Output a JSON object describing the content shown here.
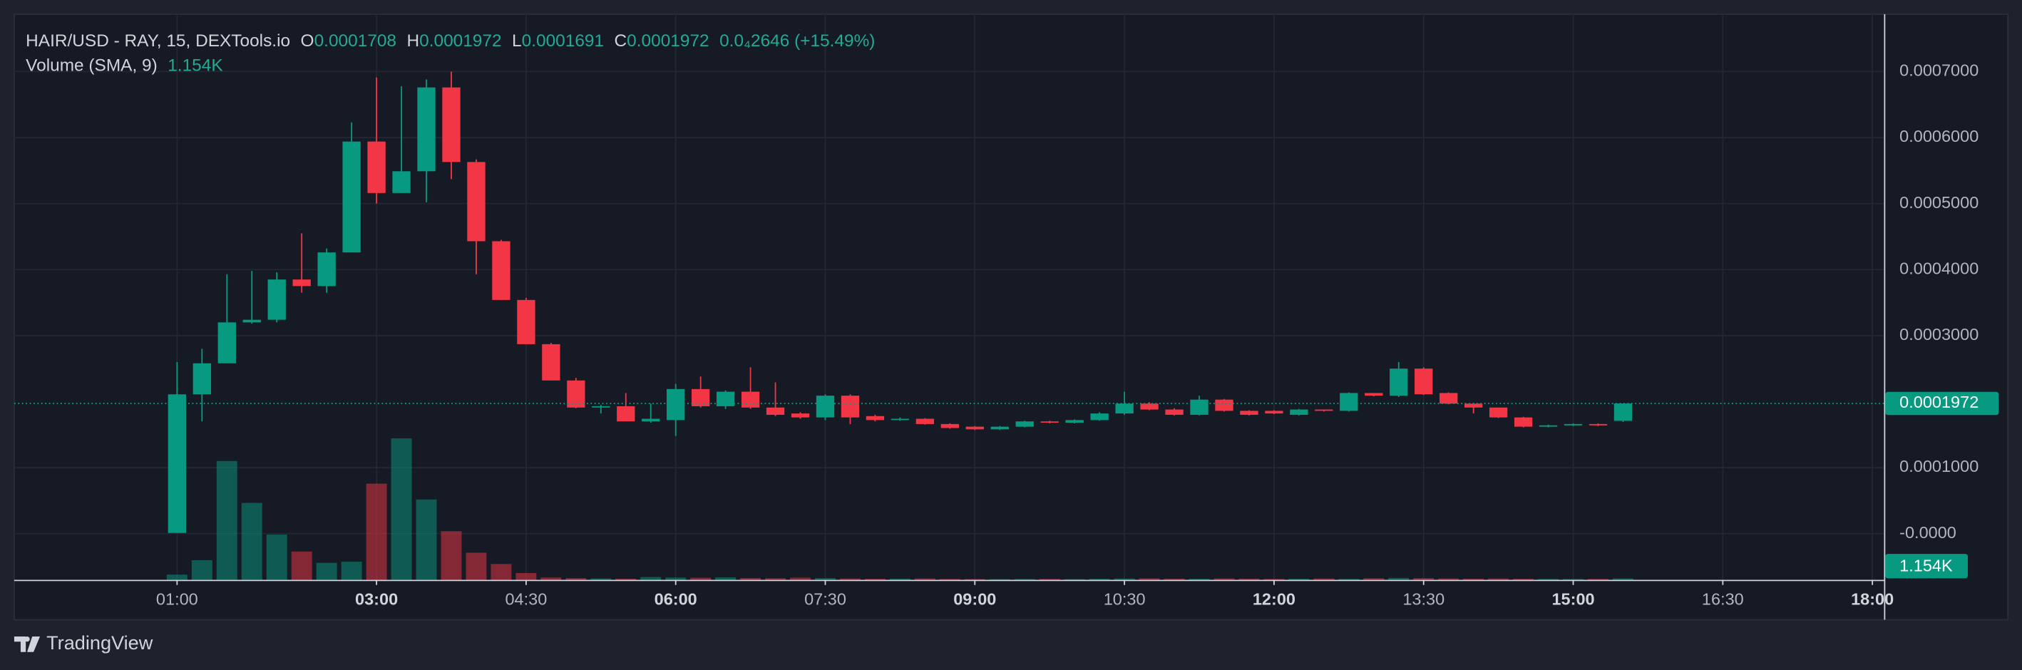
{
  "chart_data": {
    "type": "candlestick",
    "title": "HAIR/USD - RAY, 15, DEXTools.io",
    "ohlc_labels": [
      "O",
      "H",
      "L",
      "C"
    ],
    "change": "0.0₄2646 (+15.49%)",
    "volume_title": "Volume (SMA, 9)",
    "volume_sma": {
      "value": 1154,
      "label": "1.154K"
    },
    "branding": "TradingView",
    "up_color": "#089981",
    "down_color": "#f23645",
    "volume_up_color": "rgba(8,153,129,0.5)",
    "volume_down_color": "rgba(242,54,69,0.5)",
    "grid": true,
    "x": [
      60,
      75,
      90,
      105,
      120,
      135,
      150,
      165,
      180,
      195,
      210,
      225,
      240,
      255,
      270,
      285,
      300,
      315,
      330,
      345,
      360,
      375,
      390,
      405,
      420,
      435,
      450,
      465,
      480,
      495,
      510,
      525,
      540,
      555,
      570,
      585,
      600,
      615,
      630,
      645,
      660,
      675,
      690,
      705,
      720,
      735,
      750,
      765,
      780,
      795,
      810,
      825,
      840,
      855,
      870,
      885,
      900,
      915,
      930
    ],
    "open": [
      1e-06,
      0.000211,
      0.000258,
      0.00032,
      0.000324,
      0.000385,
      0.000375,
      0.000426,
      0.000594,
      0.000516,
      0.000549,
      0.000676,
      0.000563,
      0.000443,
      0.000354,
      0.000287,
      0.000232,
      0.000191,
      0.000193,
      0.00017,
      0.000172,
      0.000219,
      0.000193,
      0.000215,
      0.000191,
      0.000182,
      0.000176,
      0.000209,
      0.000178,
      0.000172,
      0.000174,
      0.000166,
      0.000162,
      0.000158,
      0.000162,
      0.00017,
      0.000168,
      0.000172,
      0.000182,
      0.000197,
      0.000188,
      0.00018,
      0.000203,
      0.000186,
      0.000186,
      0.00018,
      0.000188,
      0.000186,
      0.000213,
      0.000209,
      0.00025,
      0.000213,
      0.000197,
      0.000191,
      0.000176,
      0.000162,
      0.000164,
      0.000166,
      0.0001708
    ],
    "high": [
      0.00026,
      0.00028,
      0.000393,
      0.000398,
      0.000396,
      0.000455,
      0.000432,
      0.000623,
      0.000691,
      0.000678,
      0.000688,
      0.0007,
      0.000567,
      0.000445,
      0.000357,
      0.000289,
      0.000236,
      0.000195,
      0.000213,
      0.000197,
      0.000227,
      0.000238,
      0.000217,
      0.000252,
      0.000229,
      0.000184,
      0.000211,
      0.000211,
      0.00018,
      0.000176,
      0.000175,
      0.000167,
      0.000163,
      0.000163,
      0.000171,
      0.000171,
      0.000173,
      0.000184,
      0.000215,
      0.000199,
      0.00019,
      0.000209,
      0.000204,
      0.000187,
      0.000187,
      0.000189,
      0.000188,
      0.000214,
      0.000213,
      0.00026,
      0.000252,
      0.000214,
      0.000198,
      0.000191,
      0.000177,
      0.000165,
      0.000167,
      0.000167,
      0.0001972
    ],
    "low": [
      1e-06,
      0.00017,
      0.000258,
      0.000318,
      0.00032,
      0.000365,
      0.000365,
      0.000426,
      0.0005,
      0.000516,
      0.000502,
      0.000537,
      0.000393,
      0.000354,
      0.000287,
      0.000232,
      0.00019,
      0.000182,
      0.00017,
      0.000168,
      0.000148,
      0.000191,
      0.000189,
      0.000189,
      0.000178,
      0.000174,
      0.000172,
      0.000166,
      0.00017,
      0.000171,
      0.000165,
      0.000159,
      0.000157,
      0.000157,
      0.000161,
      0.000167,
      0.000167,
      0.000171,
      0.00018,
      0.000187,
      0.000179,
      0.000179,
      0.000185,
      0.000179,
      0.000181,
      0.000179,
      0.000185,
      0.000185,
      0.000208,
      0.000207,
      0.00021,
      0.000196,
      0.000182,
      0.000175,
      0.000161,
      0.000161,
      0.000163,
      0.000163,
      0.0001691
    ],
    "close": [
      0.000211,
      0.000258,
      0.00032,
      0.000324,
      0.000385,
      0.000375,
      0.000426,
      0.000594,
      0.000516,
      0.000549,
      0.000676,
      0.000563,
      0.000443,
      0.000354,
      0.000287,
      0.000232,
      0.000191,
      0.000193,
      0.00017,
      0.000174,
      0.000219,
      0.000193,
      0.000215,
      0.000191,
      0.00018,
      0.000176,
      0.000209,
      0.000176,
      0.000172,
      0.000174,
      0.000166,
      0.00016,
      0.000158,
      0.000162,
      0.00017,
      0.000168,
      0.000172,
      0.000182,
      0.000197,
      0.000188,
      0.00018,
      0.000203,
      0.000186,
      0.00018,
      0.000182,
      0.000188,
      0.000186,
      0.000213,
      0.000209,
      0.00025,
      0.000211,
      0.000197,
      0.000191,
      0.000176,
      0.000162,
      0.000164,
      0.000166,
      0.000164,
      0.0001972
    ],
    "volume": [
      460,
      1730,
      10500,
      6800,
      4000,
      2500,
      1500,
      1600,
      8500,
      12500,
      7100,
      4300,
      2400,
      1400,
      600,
      200,
      150,
      120,
      100,
      250,
      200,
      180,
      220,
      160,
      140,
      190,
      150,
      110,
      90,
      100,
      120,
      80,
      70,
      60,
      70,
      80,
      60,
      90,
      110,
      130,
      100,
      90,
      120,
      100,
      80,
      90,
      110,
      80,
      140,
      170,
      150,
      120,
      100,
      110,
      90,
      80,
      70,
      80,
      120
    ],
    "volume_ylim": [
      0,
      50000
    ],
    "xlim": [
      -38,
      1087
    ],
    "xticks": [
      {
        "value": 60,
        "label": "01:00"
      },
      {
        "value": 180,
        "label": "03:00"
      },
      {
        "value": 270,
        "label": "04:30"
      },
      {
        "value": 360,
        "label": "06:00"
      },
      {
        "value": 450,
        "label": "07:30"
      },
      {
        "value": 540,
        "label": "09:00"
      },
      {
        "value": 630,
        "label": "10:30"
      },
      {
        "value": 720,
        "label": "12:00"
      },
      {
        "value": 810,
        "label": "13:30"
      },
      {
        "value": 900,
        "label": "15:00"
      },
      {
        "value": 990,
        "label": "16:30"
      },
      {
        "value": 1080,
        "label": "18:00"
      }
    ],
    "ylim": [
      -7e-05,
      0.000787
    ],
    "yticks": [
      {
        "value": 0,
        "label": "-0.0000"
      },
      {
        "value": 0.0001,
        "label": "0.0001000"
      },
      {
        "value": 0.0003,
        "label": "0.0003000"
      },
      {
        "value": 0.0004,
        "label": "0.0004000"
      },
      {
        "value": 0.0005,
        "label": "0.0005000"
      },
      {
        "value": 0.0006,
        "label": "0.0006000"
      },
      {
        "value": 0.0007,
        "label": "0.0007000"
      }
    ]
  }
}
